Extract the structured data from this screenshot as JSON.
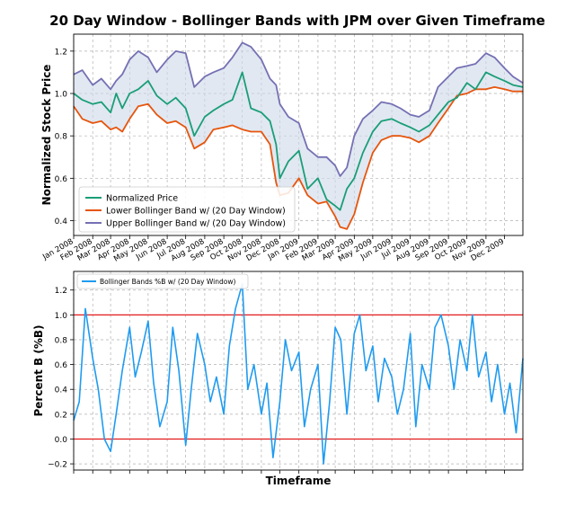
{
  "figure": {
    "title": "20 Day Window - Bollinger Bands with JPM over Given Timeframe"
  },
  "colors": {
    "price": "#1a9e77",
    "lower": "#e6550d",
    "upper": "#7570b3",
    "fill": "#cdd9ea",
    "percent_b": "#1f9bf0",
    "ref_lines": "#e41a1c",
    "grid": "#b0b0b0"
  },
  "chart_data": [
    {
      "type": "line",
      "ylabel": "Normalized Stock Price",
      "xlabel": "",
      "xlim": [
        "2008-01-01",
        "2009-12-31"
      ],
      "ylim": [
        0.33,
        1.28
      ],
      "yticks": [
        0.4,
        0.6,
        0.8,
        1.0,
        1.2
      ],
      "ytick_labels": [
        "0.4",
        "0.6",
        "0.8",
        "1.0",
        "1.2"
      ],
      "xticks": [
        "2008-01-01",
        "2008-02-01",
        "2008-03-01",
        "2008-04-01",
        "2008-05-01",
        "2008-06-01",
        "2008-07-01",
        "2008-08-01",
        "2008-09-01",
        "2008-10-01",
        "2008-11-01",
        "2008-12-01",
        "2009-01-01",
        "2009-02-01",
        "2009-03-01",
        "2009-04-01",
        "2009-05-01",
        "2009-06-01",
        "2009-07-01",
        "2009-08-01",
        "2009-09-01",
        "2009-10-01",
        "2009-11-01",
        "2009-12-01"
      ],
      "xtick_labels": [
        "Jan 2008",
        "Feb 2008",
        "Mar 2008",
        "Apr 2008",
        "May 2008",
        "Jun 2008",
        "Jul 2008",
        "Aug 2008",
        "Sep 2008",
        "Oct 2008",
        "Nov 2008",
        "Dec 2008",
        "Jan 2009",
        "Feb 2009",
        "Mar 2009",
        "Apr 2009",
        "May 2009",
        "Jun 2009",
        "Jul 2009",
        "Aug 2009",
        "Sep 2009",
        "Oct 2009",
        "Nov 2009",
        "Dec 2009"
      ],
      "grid": true,
      "legend_position": "lower-left",
      "band_fill": true,
      "series": [
        {
          "name": "Normalized Price",
          "x": [
            "2008-01-01",
            "2008-01-15",
            "2008-02-01",
            "2008-02-15",
            "2008-03-01",
            "2008-03-10",
            "2008-03-20",
            "2008-04-01",
            "2008-04-15",
            "2008-05-01",
            "2008-05-15",
            "2008-06-01",
            "2008-06-15",
            "2008-07-01",
            "2008-07-15",
            "2008-08-01",
            "2008-08-15",
            "2008-09-01",
            "2008-09-15",
            "2008-10-01",
            "2008-10-15",
            "2008-11-01",
            "2008-11-15",
            "2008-11-25",
            "2008-12-01",
            "2008-12-15",
            "2009-01-01",
            "2009-01-15",
            "2009-02-01",
            "2009-02-15",
            "2009-03-01",
            "2009-03-09",
            "2009-03-20",
            "2009-04-01",
            "2009-04-15",
            "2009-05-01",
            "2009-05-15",
            "2009-06-01",
            "2009-06-15",
            "2009-07-01",
            "2009-07-15",
            "2009-08-01",
            "2009-08-15",
            "2009-09-01",
            "2009-09-15",
            "2009-10-01",
            "2009-10-15",
            "2009-11-01",
            "2009-11-15",
            "2009-12-01",
            "2009-12-15",
            "2009-12-31"
          ],
          "values": [
            1.0,
            0.97,
            0.95,
            0.96,
            0.91,
            1.0,
            0.93,
            1.0,
            1.02,
            1.06,
            0.99,
            0.95,
            0.98,
            0.93,
            0.8,
            0.89,
            0.92,
            0.95,
            0.97,
            1.1,
            0.93,
            0.91,
            0.87,
            0.76,
            0.6,
            0.68,
            0.73,
            0.55,
            0.6,
            0.5,
            0.47,
            0.45,
            0.55,
            0.6,
            0.72,
            0.82,
            0.87,
            0.88,
            0.86,
            0.84,
            0.82,
            0.85,
            0.9,
            0.96,
            0.98,
            1.05,
            1.02,
            1.1,
            1.08,
            1.06,
            1.04,
            1.03
          ]
        },
        {
          "name": "Lower Bollinger Band w/ (20 Day Window)",
          "x": [
            "2008-01-01",
            "2008-01-15",
            "2008-02-01",
            "2008-02-15",
            "2008-03-01",
            "2008-03-10",
            "2008-03-20",
            "2008-04-01",
            "2008-04-15",
            "2008-05-01",
            "2008-05-15",
            "2008-06-01",
            "2008-06-15",
            "2008-07-01",
            "2008-07-15",
            "2008-08-01",
            "2008-08-15",
            "2008-09-01",
            "2008-09-15",
            "2008-10-01",
            "2008-10-15",
            "2008-11-01",
            "2008-11-15",
            "2008-11-25",
            "2008-12-01",
            "2008-12-15",
            "2009-01-01",
            "2009-01-15",
            "2009-02-01",
            "2009-02-15",
            "2009-03-01",
            "2009-03-09",
            "2009-03-20",
            "2009-04-01",
            "2009-04-15",
            "2009-05-01",
            "2009-05-15",
            "2009-06-01",
            "2009-06-15",
            "2009-07-01",
            "2009-07-15",
            "2009-08-01",
            "2009-08-15",
            "2009-09-01",
            "2009-09-15",
            "2009-10-01",
            "2009-10-15",
            "2009-11-01",
            "2009-11-15",
            "2009-12-01",
            "2009-12-15",
            "2009-12-31"
          ],
          "values": [
            0.94,
            0.88,
            0.86,
            0.87,
            0.83,
            0.84,
            0.82,
            0.88,
            0.94,
            0.95,
            0.9,
            0.86,
            0.87,
            0.84,
            0.74,
            0.77,
            0.83,
            0.84,
            0.85,
            0.83,
            0.82,
            0.82,
            0.76,
            0.58,
            0.52,
            0.53,
            0.6,
            0.52,
            0.48,
            0.49,
            0.42,
            0.37,
            0.36,
            0.43,
            0.58,
            0.72,
            0.78,
            0.8,
            0.8,
            0.79,
            0.77,
            0.8,
            0.86,
            0.93,
            0.99,
            1.0,
            1.02,
            1.02,
            1.03,
            1.02,
            1.01,
            1.01
          ]
        },
        {
          "name": "Upper Bollinger Band w/ (20 Day Window)",
          "x": [
            "2008-01-01",
            "2008-01-15",
            "2008-02-01",
            "2008-02-15",
            "2008-03-01",
            "2008-03-10",
            "2008-03-20",
            "2008-04-01",
            "2008-04-15",
            "2008-05-01",
            "2008-05-15",
            "2008-06-01",
            "2008-06-15",
            "2008-07-01",
            "2008-07-15",
            "2008-08-01",
            "2008-08-15",
            "2008-09-01",
            "2008-09-15",
            "2008-10-01",
            "2008-10-15",
            "2008-11-01",
            "2008-11-15",
            "2008-11-25",
            "2008-12-01",
            "2008-12-15",
            "2009-01-01",
            "2009-01-15",
            "2009-02-01",
            "2009-02-15",
            "2009-03-01",
            "2009-03-09",
            "2009-03-20",
            "2009-04-01",
            "2009-04-15",
            "2009-05-01",
            "2009-05-15",
            "2009-06-01",
            "2009-06-15",
            "2009-07-01",
            "2009-07-15",
            "2009-08-01",
            "2009-08-15",
            "2009-09-01",
            "2009-09-15",
            "2009-10-01",
            "2009-10-15",
            "2009-11-01",
            "2009-11-15",
            "2009-12-01",
            "2009-12-15",
            "2009-12-31"
          ],
          "values": [
            1.09,
            1.11,
            1.04,
            1.07,
            1.02,
            1.06,
            1.09,
            1.16,
            1.2,
            1.17,
            1.1,
            1.16,
            1.2,
            1.19,
            1.03,
            1.08,
            1.1,
            1.12,
            1.17,
            1.24,
            1.22,
            1.16,
            1.07,
            1.04,
            0.95,
            0.89,
            0.86,
            0.74,
            0.7,
            0.7,
            0.66,
            0.61,
            0.65,
            0.8,
            0.88,
            0.92,
            0.96,
            0.95,
            0.93,
            0.9,
            0.89,
            0.92,
            1.03,
            1.08,
            1.12,
            1.13,
            1.14,
            1.19,
            1.17,
            1.12,
            1.08,
            1.05
          ]
        }
      ]
    },
    {
      "type": "line",
      "ylabel": "Percent B (%B)",
      "xlabel": "Timeframe",
      "xlim": [
        "2008-01-01",
        "2009-12-31"
      ],
      "ylim": [
        -0.25,
        1.35
      ],
      "yticks": [
        -0.2,
        0.0,
        0.2,
        0.4,
        0.6,
        0.8,
        1.0,
        1.2
      ],
      "ytick_labels": [
        "−0.2",
        "0.0",
        "0.2",
        "0.4",
        "0.6",
        "0.8",
        "1.0",
        "1.2"
      ],
      "grid": true,
      "legend_position": "top-left",
      "reference_lines": [
        0.0,
        1.0
      ],
      "series": [
        {
          "name": "Bollinger Bands %B w/ (20 Day Window)",
          "x": [
            "2008-01-01",
            "2008-01-10",
            "2008-01-20",
            "2008-02-01",
            "2008-02-10",
            "2008-02-20",
            "2008-03-01",
            "2008-03-10",
            "2008-03-20",
            "2008-04-01",
            "2008-04-10",
            "2008-04-20",
            "2008-05-01",
            "2008-05-10",
            "2008-05-20",
            "2008-06-01",
            "2008-06-10",
            "2008-06-20",
            "2008-07-01",
            "2008-07-10",
            "2008-07-20",
            "2008-08-01",
            "2008-08-10",
            "2008-08-20",
            "2008-09-01",
            "2008-09-10",
            "2008-09-20",
            "2008-10-01",
            "2008-10-10",
            "2008-10-20",
            "2008-11-01",
            "2008-11-10",
            "2008-11-20",
            "2008-12-01",
            "2008-12-10",
            "2008-12-20",
            "2009-01-01",
            "2009-01-10",
            "2009-01-20",
            "2009-02-01",
            "2009-02-10",
            "2009-02-20",
            "2009-03-01",
            "2009-03-10",
            "2009-03-20",
            "2009-04-01",
            "2009-04-10",
            "2009-04-20",
            "2009-05-01",
            "2009-05-10",
            "2009-05-20",
            "2009-06-01",
            "2009-06-10",
            "2009-06-20",
            "2009-07-01",
            "2009-07-10",
            "2009-07-20",
            "2009-08-01",
            "2009-08-10",
            "2009-08-20",
            "2009-09-01",
            "2009-09-10",
            "2009-09-20",
            "2009-10-01",
            "2009-10-10",
            "2009-10-20",
            "2009-11-01",
            "2009-11-10",
            "2009-11-20",
            "2009-12-01",
            "2009-12-10",
            "2009-12-20",
            "2009-12-31"
          ],
          "values": [
            0.15,
            0.3,
            1.05,
            0.65,
            0.4,
            0.0,
            -0.1,
            0.2,
            0.55,
            0.9,
            0.5,
            0.7,
            0.95,
            0.45,
            0.1,
            0.3,
            0.9,
            0.55,
            -0.05,
            0.4,
            0.85,
            0.6,
            0.3,
            0.5,
            0.2,
            0.75,
            1.05,
            1.25,
            0.4,
            0.6,
            0.2,
            0.45,
            -0.15,
            0.3,
            0.8,
            0.55,
            0.7,
            0.1,
            0.4,
            0.6,
            -0.2,
            0.3,
            0.9,
            0.8,
            0.2,
            0.85,
            1.0,
            0.55,
            0.75,
            0.3,
            0.65,
            0.5,
            0.2,
            0.4,
            0.85,
            0.1,
            0.6,
            0.4,
            0.9,
            1.0,
            0.75,
            0.4,
            0.8,
            0.55,
            1.0,
            0.5,
            0.7,
            0.3,
            0.6,
            0.2,
            0.45,
            0.05,
            0.65
          ]
        }
      ]
    }
  ]
}
